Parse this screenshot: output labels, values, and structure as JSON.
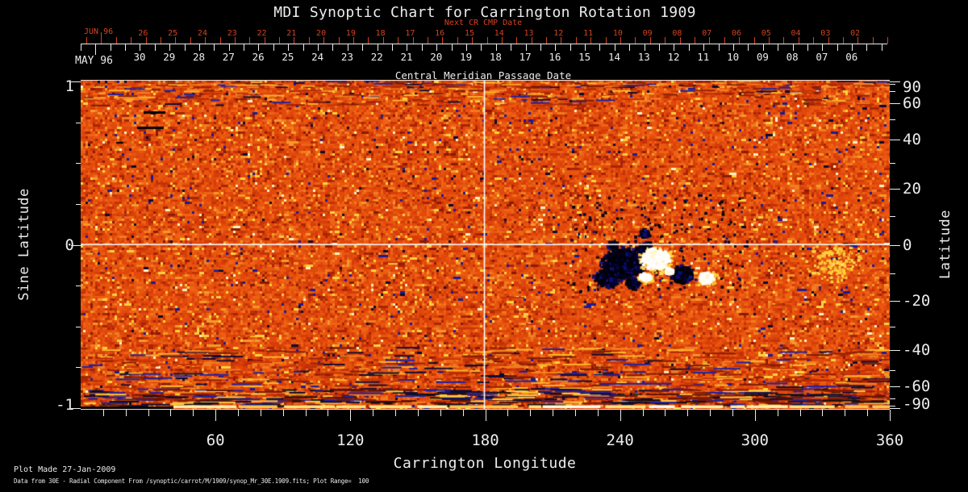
{
  "title": "MDI Synoptic Chart for Carrington Rotation 1909",
  "colors": {
    "accent_red": "#d4421f",
    "text": "#ececec",
    "background": "#000000",
    "map_base_orange": "#e1490c"
  },
  "top_axis": {
    "next_cr_label": "Next CR CMP Date",
    "next_month": "JUN 96",
    "next_dates": [
      "26",
      "25",
      "24",
      "23",
      "22",
      "21",
      "20",
      "19",
      "18",
      "17",
      "16",
      "15",
      "14",
      "13",
      "12",
      "11",
      "10",
      "09",
      "08",
      "07",
      "06",
      "05",
      "04",
      "03",
      "02"
    ],
    "month": "MAY 96",
    "dates": [
      "30",
      "29",
      "28",
      "27",
      "26",
      "25",
      "24",
      "23",
      "22",
      "21",
      "20",
      "19",
      "18",
      "17",
      "16",
      "15",
      "14",
      "13",
      "12",
      "11",
      "10",
      "09",
      "08",
      "07",
      "06"
    ],
    "axis_label": "Central Meridian Passage Date"
  },
  "x_axis": {
    "label": "Carrington Longitude",
    "ticks": [
      60,
      120,
      180,
      240,
      300,
      360
    ]
  },
  "y_left": {
    "label": "Sine Latitude",
    "ticks": [
      "1",
      "0",
      "-1"
    ]
  },
  "y_right": {
    "label": "Latitude",
    "ticks": [
      "90",
      "60",
      "40",
      "20",
      "0",
      "-20",
      "-40",
      "-60",
      "-90"
    ]
  },
  "footer": {
    "line1": "Plot Made 27-Jan-2009",
    "line2": "Data from 30E - Radial Component From /synoptic/carrot/M/1909/synop_Mr_30E.1909.fits; Plot Range=  100"
  },
  "chart_data": {
    "type": "heatmap",
    "title": "MDI Synoptic Chart for Carrington Rotation 1909",
    "xlabel": "Carrington Longitude",
    "ylabel_left": "Sine Latitude",
    "ylabel_right": "Latitude",
    "top_axis_label": "Central Meridian Passage Date",
    "top_axis_secondary_label": "Next CR CMP Date",
    "xlim": [
      0,
      360
    ],
    "ylim_sine_latitude": [
      -1,
      1
    ],
    "x_major_ticks": [
      60,
      120,
      180,
      240,
      300,
      360
    ],
    "x_minor_tick_step": 10,
    "sine_latitude_ticks": [
      1,
      0,
      -1
    ],
    "latitude_ticks": [
      90,
      60,
      40,
      20,
      0,
      -20,
      -40,
      -60,
      -90
    ],
    "cmp_dates": {
      "month": "MAY 96",
      "days": [
        30,
        29,
        28,
        27,
        26,
        25,
        24,
        23,
        22,
        21,
        20,
        19,
        18,
        17,
        16,
        15,
        14,
        13,
        12,
        11,
        10,
        9,
        8,
        7,
        6
      ]
    },
    "next_cr_cmp_dates": {
      "month": "JUN 96",
      "days": [
        26,
        25,
        24,
        23,
        22,
        21,
        20,
        19,
        18,
        17,
        16,
        15,
        14,
        13,
        12,
        11,
        10,
        9,
        8,
        7,
        6,
        5,
        4,
        3,
        2
      ]
    },
    "plot_range_gauss": 100,
    "colormap_semantics": {
      "weak_field": "orange-red mottle",
      "negative_polarity": "dark blue / black",
      "positive_polarity": "white / pale yellow"
    },
    "reference_lines": {
      "equator_sine_latitude": 0,
      "central_meridian_longitude": 180
    },
    "active_regions": [
      {
        "carrington_longitude": 241,
        "latitude_deg": -7,
        "polarity": "negative"
      },
      {
        "carrington_longitude": 257,
        "latitude_deg": -6,
        "polarity": "positive"
      },
      {
        "carrington_longitude": 267,
        "latitude_deg": -11,
        "polarity": "negative"
      },
      {
        "carrington_longitude": 278,
        "latitude_deg": -12,
        "polarity": "positive"
      }
    ],
    "footnotes": [
      "Plot Made 27-Jan-2009",
      "Data from 30E - Radial Component From /synoptic/carrot/M/1909/synop_Mr_30E.1909.fits; Plot Range=  100"
    ]
  },
  "map_render": {
    "seed": 1909,
    "palette": [
      [
        "#e1490c",
        25
      ],
      [
        "#e8560f",
        22
      ],
      [
        "#d63d09",
        17
      ],
      [
        "#ef6314",
        14
      ],
      [
        "#c53107",
        10
      ],
      [
        "#f07d1f",
        7
      ],
      [
        "#a82405",
        5.5
      ],
      [
        "#f49a2a",
        4.5
      ],
      [
        "#ffd23e",
        3.2
      ],
      [
        "#8a1a04",
        2.4
      ],
      [
        "#fff3c4",
        0.8
      ],
      [
        "#1b1b96",
        1.1
      ],
      [
        "#0a0a30",
        0.8
      ]
    ],
    "streak_colors": [
      "#9a2004",
      "#b82c06",
      "#7e1c04",
      "#2121a0",
      "#f28322",
      "#ffb62c",
      "#c53107",
      "#0d0d35"
    ],
    "deep_streak_colors": [
      "#0d0d35",
      "#2121a0",
      "#8a1a04",
      "#5c1202",
      "#ffca40",
      "#101010"
    ],
    "mid_streak_colors": [
      "#d1430b",
      "#c23708",
      "#ea5f12"
    ],
    "dark_colors": [
      "#00000c",
      "#05053a",
      "#0d0d6e",
      "#16168a"
    ],
    "white_colors": [
      "#ffffff",
      "#fffef6",
      "#fff6d0",
      "#ffeaa8"
    ],
    "fringe_colors": [
      "#ffd23e",
      "#f8a828",
      "#ffe06a"
    ],
    "bright_strip_colors": [
      "#ffefa8",
      "#ffe57e",
      "#fffce8",
      "#f8c84e"
    ],
    "dark_blobs": [
      [
        672,
        228,
        26,
        700
      ],
      [
        652,
        246,
        14,
        260
      ],
      [
        700,
        208,
        9,
        110
      ],
      [
        745,
        240,
        13,
        280
      ],
      [
        686,
        252,
        8,
        90
      ],
      [
        660,
        205,
        7,
        70
      ],
      [
        700,
        190,
        6,
        50
      ]
    ],
    "white_blobs": [
      [
        713,
        221,
        16,
        430
      ],
      [
        775,
        245,
        9,
        190
      ],
      [
        700,
        244,
        6,
        80
      ],
      [
        730,
        236,
        5,
        60
      ]
    ],
    "fringe_blobs": [
      [
        714,
        222,
        21,
        260
      ],
      [
        778,
        246,
        12,
        90
      ],
      [
        935,
        225,
        34,
        150
      ],
      [
        700,
        246,
        9,
        60
      ]
    ],
    "speck_zone": [
      600,
      140,
      220,
      120,
      180
    ],
    "dashes": [
      [
        78,
        38,
        27,
        3
      ],
      [
        70,
        57,
        33,
        3
      ],
      [
        44,
        76,
        9,
        2
      ]
    ],
    "black_bar": [
      0,
      404,
      115,
      3
    ],
    "equator_y": 202.3,
    "meridian_x": 499.7,
    "line_color": "#ffffff"
  }
}
